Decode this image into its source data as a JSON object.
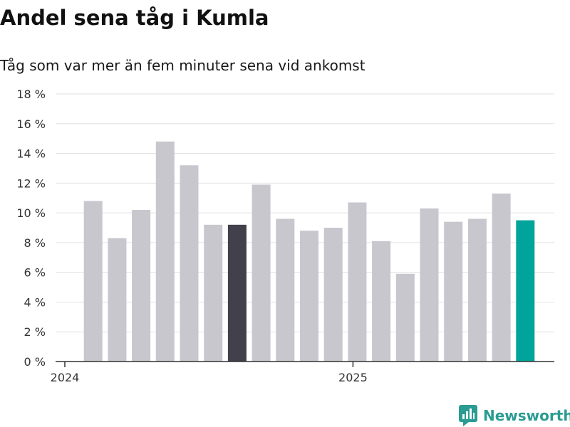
{
  "title": "Andel sena tåg i Kumla",
  "subtitle": "Tåg som var mer än fem minuter sena vid ankomst",
  "brand": {
    "name": "Newsworthy",
    "icon": "newsworthy-logo-icon",
    "color": "#2a9c92"
  },
  "chart_data": {
    "type": "bar",
    "title": "Andel sena tåg i Kumla",
    "subtitle": "Tåg som var mer än fem minuter sena vid ankomst",
    "xlabel": "",
    "ylabel": "",
    "ylim": [
      0,
      18
    ],
    "yticks": [
      0,
      2,
      4,
      6,
      8,
      10,
      12,
      14,
      16,
      18
    ],
    "ytick_labels": [
      "0 %",
      "2 %",
      "4 %",
      "6 %",
      "8 %",
      "10 %",
      "12 %",
      "14 %",
      "16 %",
      "18 %"
    ],
    "x_period_labels": [
      {
        "label": "2024",
        "category_index": 0
      },
      {
        "label": "2025",
        "category_index": 12
      }
    ],
    "categories": [
      "2024-01",
      "2024-02",
      "2024-03",
      "2024-04",
      "2024-05",
      "2024-06",
      "2024-07",
      "2024-08",
      "2024-09",
      "2024-10",
      "2024-11",
      "2024-12",
      "2025-01",
      "2025-02",
      "2025-03",
      "2025-04",
      "2025-05",
      "2025-06",
      "2025-07",
      "2025-08",
      "2025-09"
    ],
    "values": [
      null,
      10.8,
      8.3,
      10.2,
      14.8,
      13.2,
      9.2,
      9.2,
      11.9,
      9.6,
      8.8,
      9.0,
      10.7,
      8.1,
      5.9,
      10.3,
      9.4,
      9.6,
      11.3,
      9.5,
      null
    ],
    "grid": true,
    "colors": {
      "default": "#c8c7ce",
      "highlight_past": "#41404b",
      "highlight_current": "#00a49a",
      "grid": "#e2e2e2",
      "axis": "#333333"
    },
    "highlights": [
      {
        "category_index": 7,
        "color": "#41404b"
      },
      {
        "category_index": 19,
        "color": "#00a49a"
      }
    ]
  }
}
